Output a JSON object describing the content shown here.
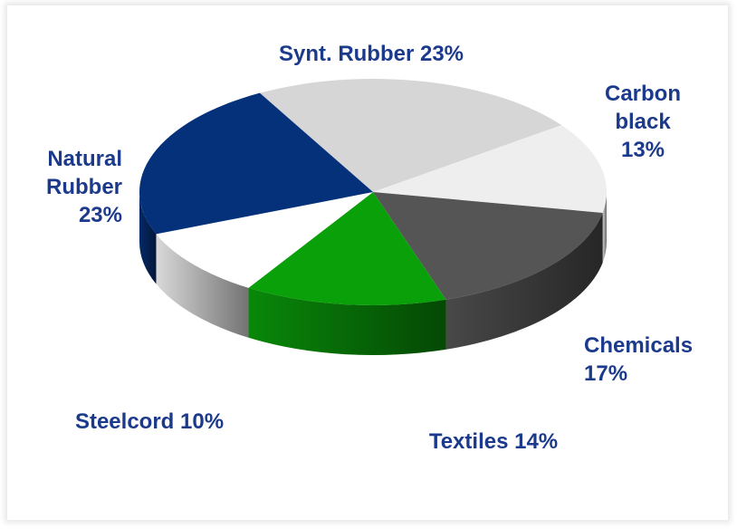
{
  "chart_data": {
    "type": "pie",
    "categories": [
      "Synt. Rubber",
      "Carbon black",
      "Chemicals",
      "Textiles",
      "Steelcord",
      "Natural Rubber"
    ],
    "values": [
      23,
      13,
      17,
      14,
      10,
      23
    ],
    "value_labels": [
      "23%",
      "13%",
      "17%",
      "14%",
      "10%",
      "23%"
    ],
    "colors": [
      "#d6d6d6",
      "#eeeeee",
      "#555555",
      "#0aa00a",
      "#ffffff",
      "#05317a"
    ]
  }
}
